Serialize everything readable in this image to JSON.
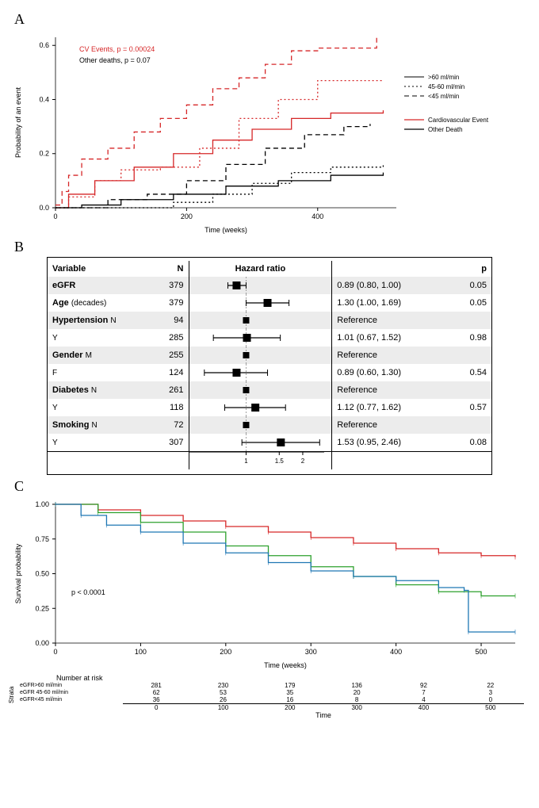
{
  "panelA": {
    "label": "A",
    "xlabel": "Time (weeks)",
    "ylabel": "Probability of an event",
    "xlim": [
      0,
      520
    ],
    "ylim": [
      0,
      0.63
    ],
    "xticks": [
      0,
      200,
      400
    ],
    "yticks": [
      0.0,
      0.2,
      0.4,
      0.6
    ],
    "pvals": [
      {
        "text": "CV Events, p = 0.00024",
        "color": "#d62728"
      },
      {
        "text": "Other deaths, p = 0.07",
        "color": "#000000"
      }
    ],
    "legend_groups": [
      {
        "label": ">60 ml/min",
        "dash": "solid"
      },
      {
        "label": "45-60 ml/min",
        "dash": "dot"
      },
      {
        "label": "<45 ml/min",
        "dash": "dash"
      }
    ],
    "legend_types": [
      {
        "label": "Cardiovascular Event",
        "color": "#d62728"
      },
      {
        "label": "Other Death",
        "color": "#000000"
      }
    ],
    "series": [
      {
        "color": "#d62728",
        "dash": "dash",
        "pts": [
          [
            0,
            0.01
          ],
          [
            10,
            0.06
          ],
          [
            20,
            0.12
          ],
          [
            40,
            0.18
          ],
          [
            80,
            0.22
          ],
          [
            120,
            0.28
          ],
          [
            160,
            0.33
          ],
          [
            200,
            0.38
          ],
          [
            240,
            0.44
          ],
          [
            280,
            0.48
          ],
          [
            320,
            0.53
          ],
          [
            360,
            0.58
          ],
          [
            400,
            0.59
          ],
          [
            460,
            0.59
          ],
          [
            490,
            0.63
          ]
        ]
      },
      {
        "color": "#d62728",
        "dash": "dot",
        "pts": [
          [
            0,
            0
          ],
          [
            20,
            0.04
          ],
          [
            60,
            0.1
          ],
          [
            100,
            0.14
          ],
          [
            160,
            0.15
          ],
          [
            220,
            0.22
          ],
          [
            280,
            0.33
          ],
          [
            340,
            0.4
          ],
          [
            400,
            0.47
          ],
          [
            500,
            0.47
          ]
        ]
      },
      {
        "color": "#d62728",
        "dash": "solid",
        "pts": [
          [
            0,
            0
          ],
          [
            20,
            0.05
          ],
          [
            60,
            0.1
          ],
          [
            120,
            0.15
          ],
          [
            180,
            0.2
          ],
          [
            240,
            0.25
          ],
          [
            300,
            0.29
          ],
          [
            360,
            0.33
          ],
          [
            420,
            0.35
          ],
          [
            500,
            0.36
          ]
        ]
      },
      {
        "color": "#000000",
        "dash": "dash",
        "pts": [
          [
            0,
            0
          ],
          [
            40,
            0.0
          ],
          [
            80,
            0.03
          ],
          [
            140,
            0.05
          ],
          [
            200,
            0.1
          ],
          [
            260,
            0.16
          ],
          [
            320,
            0.22
          ],
          [
            380,
            0.27
          ],
          [
            440,
            0.3
          ],
          [
            480,
            0.31
          ]
        ]
      },
      {
        "color": "#000000",
        "dash": "dot",
        "pts": [
          [
            0,
            0
          ],
          [
            60,
            0.0
          ],
          [
            120,
            0.0
          ],
          [
            180,
            0.02
          ],
          [
            240,
            0.05
          ],
          [
            300,
            0.09
          ],
          [
            360,
            0.13
          ],
          [
            420,
            0.15
          ],
          [
            500,
            0.16
          ]
        ]
      },
      {
        "color": "#000000",
        "dash": "solid",
        "pts": [
          [
            0,
            0
          ],
          [
            40,
            0.01
          ],
          [
            100,
            0.03
          ],
          [
            180,
            0.05
          ],
          [
            260,
            0.08
          ],
          [
            340,
            0.1
          ],
          [
            420,
            0.12
          ],
          [
            500,
            0.13
          ]
        ]
      }
    ]
  },
  "panelB": {
    "label": "B",
    "headers": {
      "variable": "Variable",
      "n": "N",
      "hr": "Hazard ratio",
      "p": "p"
    },
    "xscale": {
      "min": 0.5,
      "max": 2.6,
      "ref": 1.0,
      "ticks": [
        1,
        1.5,
        2
      ],
      "ticklabels": [
        "1",
        "1.5",
        "2"
      ]
    },
    "rows": [
      {
        "var": "eGFR",
        "sub": "",
        "n": "379",
        "hr": 0.89,
        "lo": 0.8,
        "hi": 1.0,
        "ci": "0.89 (0.80, 1.00)",
        "p": "0.05",
        "shade": true,
        "bold": true
      },
      {
        "var": "Age",
        "sub": "(decades)",
        "n": "379",
        "hr": 1.3,
        "lo": 1.0,
        "hi": 1.69,
        "ci": "1.30 (1.00, 1.69)",
        "p": "0.05",
        "shade": false,
        "bold": true
      },
      {
        "var": "Hypertension",
        "sub": "N",
        "n": "94",
        "ref": true,
        "ci": "Reference",
        "p": "",
        "shade": true,
        "bold": true
      },
      {
        "var": "",
        "sub": "Y",
        "n": "285",
        "hr": 1.01,
        "lo": 0.67,
        "hi": 1.52,
        "ci": "1.01 (0.67, 1.52)",
        "p": "0.98",
        "shade": false,
        "bold": false
      },
      {
        "var": "Gender",
        "sub": "M",
        "n": "255",
        "ref": true,
        "ci": "Reference",
        "p": "",
        "shade": true,
        "bold": true
      },
      {
        "var": "",
        "sub": "F",
        "n": "124",
        "hr": 0.89,
        "lo": 0.6,
        "hi": 1.3,
        "ci": "0.89 (0.60, 1.30)",
        "p": "0.54",
        "shade": false,
        "bold": false
      },
      {
        "var": "Diabetes",
        "sub": "N",
        "n": "261",
        "ref": true,
        "ci": "Reference",
        "p": "",
        "shade": true,
        "bold": true
      },
      {
        "var": "",
        "sub": "Y",
        "n": "118",
        "hr": 1.12,
        "lo": 0.77,
        "hi": 1.62,
        "ci": "1.12 (0.77, 1.62)",
        "p": "0.57",
        "shade": false,
        "bold": false
      },
      {
        "var": "Smoking",
        "sub": "N",
        "n": "72",
        "ref": true,
        "ci": "Reference",
        "p": "",
        "shade": true,
        "bold": true
      },
      {
        "var": "",
        "sub": "Y",
        "n": "307",
        "hr": 1.53,
        "lo": 0.95,
        "hi": 2.46,
        "ci": "1.53 (0.95, 2.46)",
        "p": "0.08",
        "shade": false,
        "bold": false
      }
    ]
  },
  "panelC": {
    "label": "C",
    "xlabel": "Time (weeks)",
    "ylabel": "Survival probability",
    "xlim": [
      0,
      540
    ],
    "ylim": [
      0,
      1.0
    ],
    "xticks": [
      0,
      100,
      200,
      300,
      400,
      500
    ],
    "yticks": [
      0.0,
      0.25,
      0.5,
      0.75,
      1.0
    ],
    "pval": "p < 0.0001",
    "curves": [
      {
        "color": "#d62728",
        "pts": [
          [
            0,
            1.0
          ],
          [
            50,
            0.96
          ],
          [
            100,
            0.92
          ],
          [
            150,
            0.88
          ],
          [
            200,
            0.84
          ],
          [
            250,
            0.8
          ],
          [
            300,
            0.76
          ],
          [
            350,
            0.72
          ],
          [
            400,
            0.68
          ],
          [
            450,
            0.65
          ],
          [
            500,
            0.63
          ],
          [
            540,
            0.62
          ]
        ]
      },
      {
        "color": "#2ca02c",
        "pts": [
          [
            0,
            1.0
          ],
          [
            50,
            0.94
          ],
          [
            100,
            0.87
          ],
          [
            150,
            0.8
          ],
          [
            200,
            0.7
          ],
          [
            250,
            0.63
          ],
          [
            300,
            0.55
          ],
          [
            350,
            0.48
          ],
          [
            400,
            0.42
          ],
          [
            450,
            0.37
          ],
          [
            500,
            0.34
          ],
          [
            540,
            0.34
          ]
        ]
      },
      {
        "color": "#1f77b4",
        "pts": [
          [
            0,
            1.0
          ],
          [
            30,
            0.92
          ],
          [
            60,
            0.85
          ],
          [
            100,
            0.8
          ],
          [
            150,
            0.72
          ],
          [
            200,
            0.65
          ],
          [
            250,
            0.58
          ],
          [
            300,
            0.52
          ],
          [
            350,
            0.48
          ],
          [
            400,
            0.45
          ],
          [
            450,
            0.4
          ],
          [
            480,
            0.38
          ],
          [
            485,
            0.08
          ],
          [
            540,
            0.08
          ]
        ]
      }
    ],
    "risk": {
      "header": "Number at risk",
      "strata_label": "Strata",
      "rows": [
        {
          "label": "eGFR>60 ml/min",
          "vals": [
            "281",
            "230",
            "179",
            "136",
            "92",
            "22"
          ]
        },
        {
          "label": "eGFR 45-60 ml/min",
          "vals": [
            "62",
            "53",
            "35",
            "20",
            "7",
            "3"
          ]
        },
        {
          "label": "eGFR<45 ml/min",
          "vals": [
            "36",
            "26",
            "16",
            "8",
            "4",
            "0"
          ]
        }
      ],
      "time_row": [
        "0",
        "100",
        "200",
        "300",
        "400",
        "500"
      ],
      "time_label": "Time"
    }
  }
}
